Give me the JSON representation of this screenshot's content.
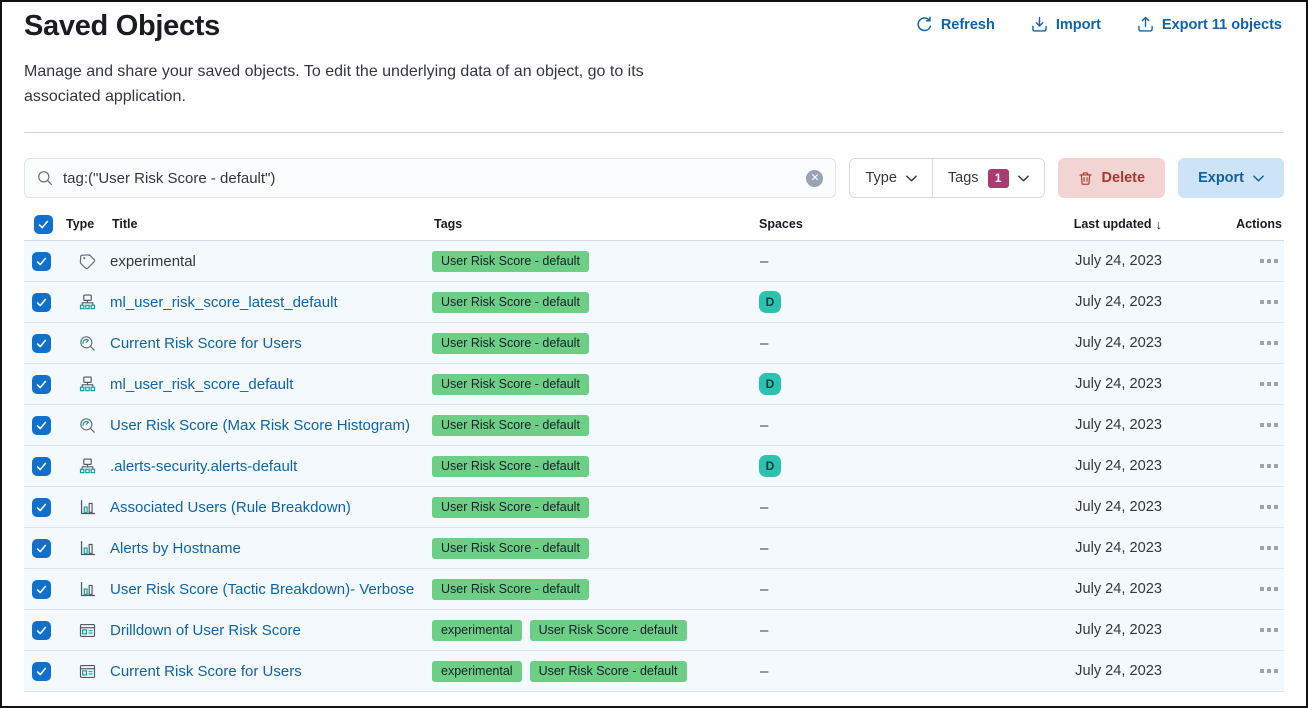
{
  "page": {
    "title": "Saved Objects",
    "description": "Manage and share your saved objects. To edit the underlying data of an object, go to its associated application."
  },
  "header_actions": {
    "refresh": "Refresh",
    "import": "Import",
    "export": "Export 11 objects"
  },
  "toolbar": {
    "search_value": "tag:(\"User Risk Score - default\")",
    "type_filter_label": "Type",
    "tags_filter_label": "Tags",
    "tags_active_count": "1",
    "delete_label": "Delete",
    "export_label": "Export"
  },
  "table": {
    "columns": {
      "type": "Type",
      "title": "Title",
      "tags": "Tags",
      "spaces": "Spaces",
      "last_updated": "Last updated",
      "actions": "Actions"
    },
    "sort_indicator": "↓",
    "no_space_placeholder": "–",
    "rows": [
      {
        "icon": "tag-icon",
        "title": "experimental",
        "link": false,
        "tags": [
          "User Risk Score - default"
        ],
        "space": "",
        "date": "July 24, 2023",
        "checked": true
      },
      {
        "icon": "transform-icon",
        "title": "ml_user_risk_score_latest_default",
        "link": true,
        "tags": [
          "User Risk Score - default"
        ],
        "space": "D",
        "date": "July 24, 2023",
        "checked": true
      },
      {
        "icon": "visualization-icon",
        "title": "Current Risk Score for Users",
        "link": true,
        "tags": [
          "User Risk Score - default"
        ],
        "space": "",
        "date": "July 24, 2023",
        "checked": true
      },
      {
        "icon": "transform-icon",
        "title": "ml_user_risk_score_default",
        "link": true,
        "tags": [
          "User Risk Score - default"
        ],
        "space": "D",
        "date": "July 24, 2023",
        "checked": true
      },
      {
        "icon": "visualization-icon",
        "title": "User Risk Score (Max Risk Score Histogram)",
        "link": true,
        "tags": [
          "User Risk Score - default"
        ],
        "space": "",
        "date": "July 24, 2023",
        "checked": true
      },
      {
        "icon": "transform-icon",
        "title": ".alerts-security.alerts-default",
        "link": true,
        "tags": [
          "User Risk Score - default"
        ],
        "space": "D",
        "date": "July 24, 2023",
        "checked": true
      },
      {
        "icon": "lens-icon",
        "title": "Associated Users (Rule Breakdown)",
        "link": true,
        "tags": [
          "User Risk Score - default"
        ],
        "space": "",
        "date": "July 24, 2023",
        "checked": true
      },
      {
        "icon": "lens-icon",
        "title": "Alerts by Hostname",
        "link": true,
        "tags": [
          "User Risk Score - default"
        ],
        "space": "",
        "date": "July 24, 2023",
        "checked": true
      },
      {
        "icon": "lens-icon",
        "title": "User Risk Score (Tactic Breakdown)- Verbose",
        "link": true,
        "tags": [
          "User Risk Score - default"
        ],
        "space": "",
        "date": "July 24, 2023",
        "checked": true
      },
      {
        "icon": "dashboard-icon",
        "title": "Drilldown of User Risk Score",
        "link": true,
        "tags": [
          "experimental",
          "User Risk Score - default"
        ],
        "space": "",
        "date": "July 24, 2023",
        "checked": true
      },
      {
        "icon": "dashboard-icon",
        "title": "Current Risk Score for Users",
        "link": true,
        "tags": [
          "experimental",
          "User Risk Score - default"
        ],
        "space": "",
        "date": "July 24, 2023",
        "checked": true
      }
    ]
  },
  "colors": {
    "link_blue": "#0F63AD",
    "checkbox_blue": "#1170CC",
    "tag_badge_green": "#6DCE85",
    "space_badge_teal": "#2BC3AF",
    "count_badge_pink": "#AC3A70",
    "delete_button_bg": "#F2D5D3",
    "delete_button_text": "#AB342D",
    "export_button_bg": "#CCE4F5",
    "export_button_text": "#13609F"
  }
}
